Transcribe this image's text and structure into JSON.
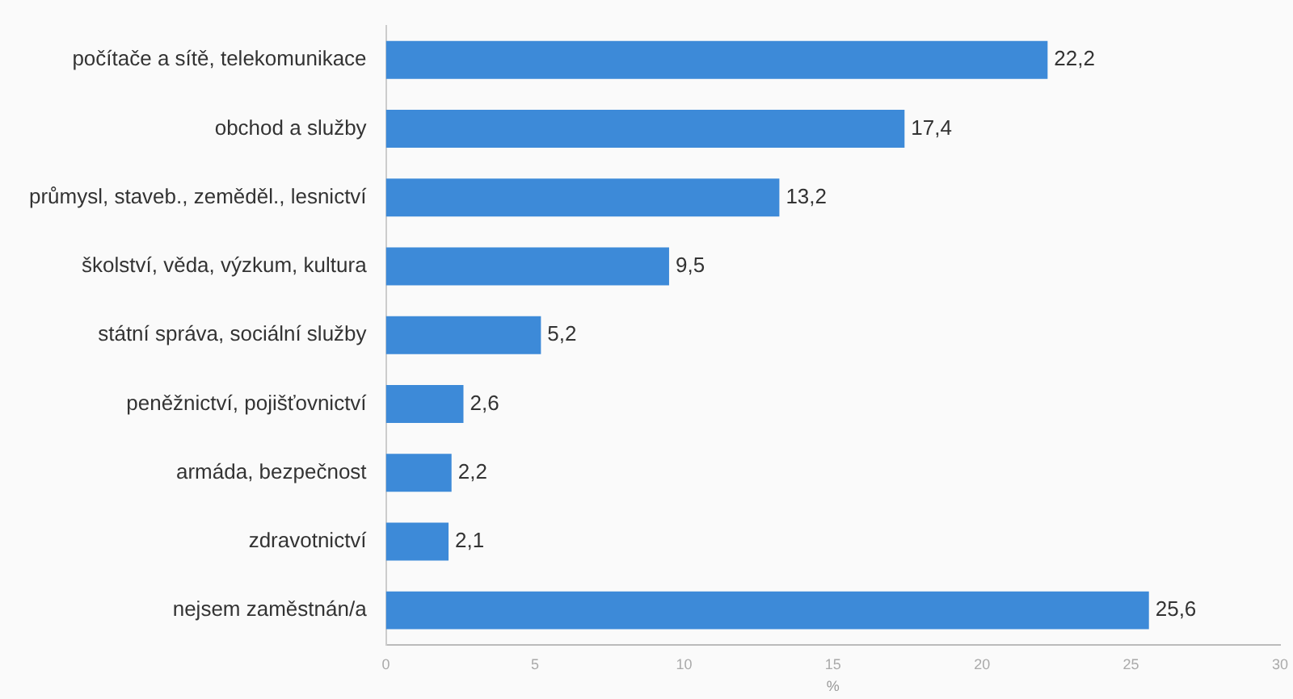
{
  "chart_data": {
    "type": "bar",
    "orientation": "horizontal",
    "xlabel": "%",
    "categories": [
      "počítače a sítě, telekomunikace",
      "obchod a služby",
      "průmysl, staveb., zeměděl., lesnictví",
      "školství, věda, výzkum, kultura",
      "státní správa, sociální služby",
      "peněžnictví, pojišťovnictví",
      "armáda, bezpečnost",
      "zdravotnictví",
      "nejsem zaměstnán/a"
    ],
    "values": [
      22.2,
      17.4,
      13.2,
      9.5,
      5.2,
      2.6,
      2.2,
      2.1,
      25.6
    ],
    "value_labels": [
      "22,2",
      "17,4",
      "13,2",
      "9,5",
      "5,2",
      "2,6",
      "2,2",
      "2,1",
      "25,6"
    ],
    "color": "#3d8ad8",
    "xlim": [
      0,
      30
    ],
    "xticks": [
      0,
      5,
      10,
      15,
      20,
      25,
      30
    ],
    "grid": false,
    "legend": false
  }
}
